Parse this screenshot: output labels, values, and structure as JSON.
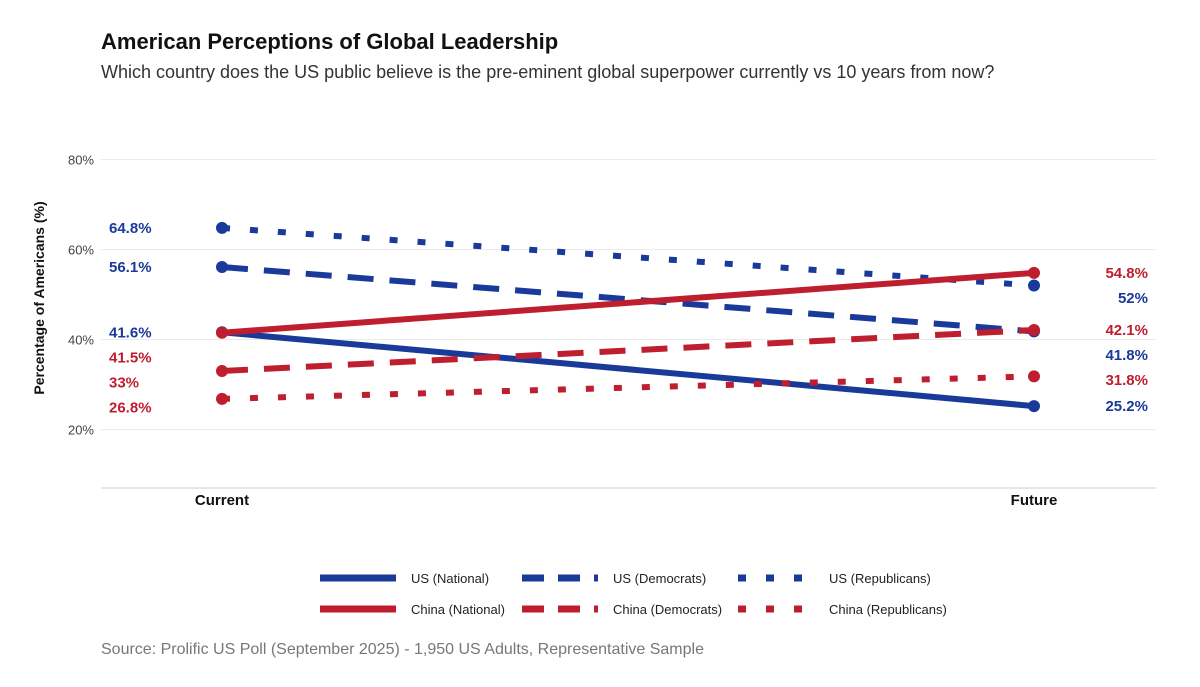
{
  "chart_data": {
    "type": "line",
    "title": "American Perceptions of Global Leadership",
    "subtitle": "Which country does the US public believe is the pre-eminent global superpower currently vs 10 years from now?",
    "ylabel": "Percentage of Americans (%)",
    "xlabel": "",
    "categories": [
      "Current",
      "Future"
    ],
    "ylim": [
      7,
      87
    ],
    "yticks": [
      20,
      40,
      60,
      80
    ],
    "ytick_labels": [
      "20%",
      "40%",
      "60%",
      "80%"
    ],
    "grid": true,
    "legend_position": "bottom",
    "series": [
      {
        "name": "US (National)",
        "values": [
          41.6,
          25.2
        ],
        "labels": [
          "41.6%",
          "25.2%"
        ],
        "color": "#1a3a9a",
        "style": "solid"
      },
      {
        "name": "US (Democrats)",
        "values": [
          56.1,
          41.8
        ],
        "labels": [
          "56.1%",
          "41.8%"
        ],
        "color": "#1a3a9a",
        "style": "dashed"
      },
      {
        "name": "US (Republicans)",
        "values": [
          64.8,
          52
        ],
        "labels": [
          "64.8%",
          "52%"
        ],
        "color": "#1a3a9a",
        "style": "dotted"
      },
      {
        "name": "China (National)",
        "values": [
          41.5,
          54.8
        ],
        "labels": [
          "41.5%",
          "54.8%"
        ],
        "color": "#bf1e2e",
        "style": "solid"
      },
      {
        "name": "China (Democrats)",
        "values": [
          33,
          42.1
        ],
        "labels": [
          "33%",
          "42.1%"
        ],
        "color": "#bf1e2e",
        "style": "dashed"
      },
      {
        "name": "China (Republicans)",
        "values": [
          26.8,
          31.8
        ],
        "labels": [
          "26.8%",
          "31.8%"
        ],
        "color": "#bf1e2e",
        "style": "dotted"
      }
    ],
    "source": "Source: Prolific US Poll (September 2025) - 1,950 US Adults, Representative Sample"
  }
}
